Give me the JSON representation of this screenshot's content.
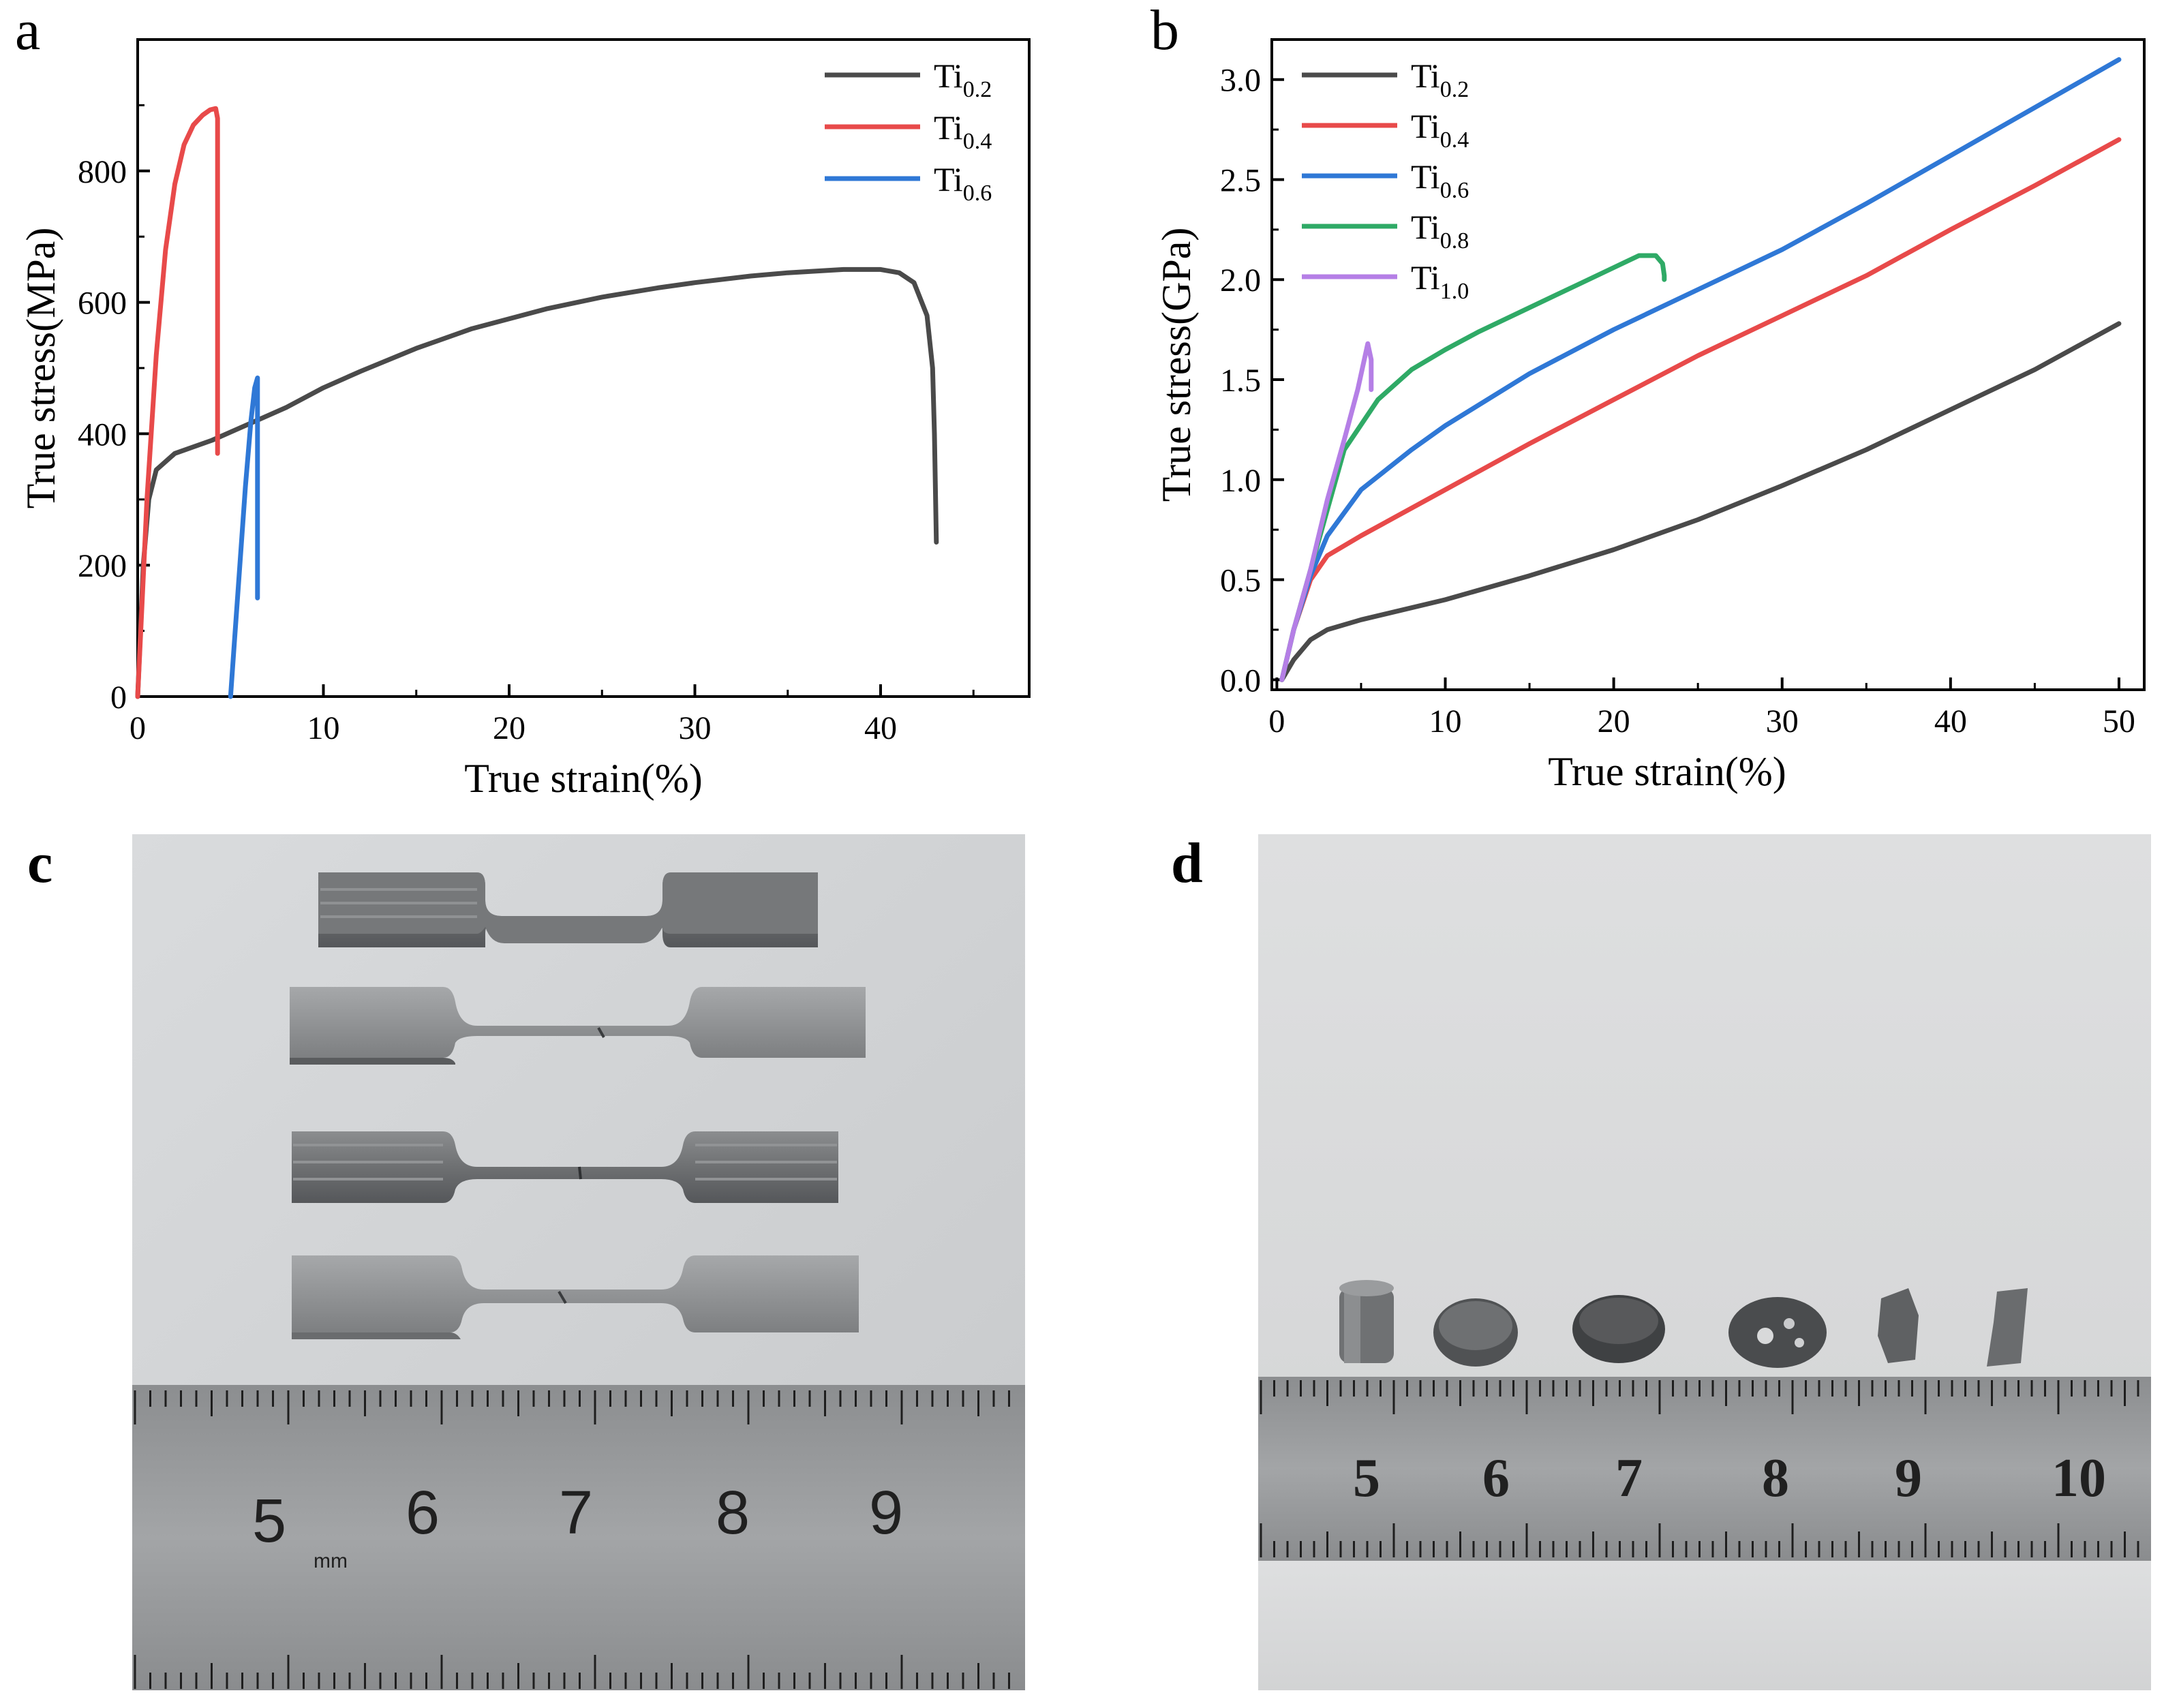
{
  "panels": {
    "a": "a",
    "b": "b",
    "c": "c",
    "d": "d"
  },
  "colors": {
    "Ti0.2": "#4a4a4a",
    "Ti0.4": "#e84a4a",
    "Ti0.6": "#2f78d6",
    "Ti0.8": "#2faa66",
    "Ti1.0": "#b57fe6"
  },
  "chart_data": [
    {
      "type": "line",
      "panel": "a",
      "xlabel": "True strain(%)",
      "ylabel": "True stress(MPa)",
      "xlim": [
        0,
        48
      ],
      "ylim": [
        0,
        1000
      ],
      "xticks": [
        0,
        10,
        20,
        30,
        40
      ],
      "yticks": [
        0,
        200,
        400,
        600,
        800
      ],
      "legend_position": "top-right",
      "series": [
        {
          "name": "Ti0.2",
          "base": "Ti",
          "sub": "0.2",
          "x": [
            0,
            0.3,
            0.6,
            1.0,
            2,
            4,
            6,
            8,
            10,
            12,
            15,
            18,
            20,
            22,
            25,
            28,
            30,
            33,
            35,
            38,
            40,
            41,
            41.8,
            42.5,
            42.8,
            42.9,
            43.0
          ],
          "y": [
            0,
            200,
            300,
            345,
            370,
            390,
            415,
            440,
            470,
            495,
            530,
            560,
            575,
            590,
            608,
            622,
            630,
            640,
            645,
            650,
            650,
            645,
            630,
            580,
            500,
            400,
            235
          ]
        },
        {
          "name": "Ti0.4",
          "base": "Ti",
          "sub": "0.4",
          "x": [
            0,
            0.5,
            1.0,
            1.5,
            2.0,
            2.5,
            3.0,
            3.5,
            3.9,
            4.2,
            4.3,
            4.3,
            4.3
          ],
          "y": [
            0,
            300,
            520,
            680,
            780,
            840,
            870,
            885,
            893,
            895,
            880,
            600,
            370
          ]
        },
        {
          "name": "Ti0.6",
          "base": "Ti",
          "sub": "0.6",
          "x": [
            5.0,
            5.2,
            5.5,
            5.8,
            6.1,
            6.3,
            6.45,
            6.45,
            6.45
          ],
          "y": [
            0,
            80,
            200,
            320,
            420,
            470,
            485,
            300,
            150
          ]
        }
      ]
    },
    {
      "type": "line",
      "panel": "b",
      "xlabel": "True strain(%)",
      "ylabel": "True stress(GPa)",
      "xlim": [
        -0.3,
        51.5
      ],
      "ylim": [
        -0.05,
        3.2
      ],
      "xticks": [
        0,
        10,
        20,
        30,
        40,
        50
      ],
      "yticks": [
        0.0,
        0.5,
        1.0,
        1.5,
        2.0,
        2.5,
        3.0
      ],
      "ytick_labels": [
        "0.0",
        "0.5",
        "1.0",
        "1.5",
        "2.0",
        "2.5",
        "3.0"
      ],
      "legend_position": "top-left",
      "series": [
        {
          "name": "Ti0.2",
          "base": "Ti",
          "sub": "0.2",
          "x": [
            0.3,
            1,
            2,
            3,
            5,
            10,
            15,
            20,
            25,
            30,
            35,
            40,
            45,
            50
          ],
          "y": [
            0,
            0.1,
            0.2,
            0.25,
            0.3,
            0.4,
            0.52,
            0.65,
            0.8,
            0.97,
            1.15,
            1.35,
            1.55,
            1.78
          ]
        },
        {
          "name": "Ti0.4",
          "base": "Ti",
          "sub": "0.4",
          "x": [
            0.3,
            1,
            2,
            3,
            5,
            10,
            15,
            20,
            25,
            30,
            35,
            40,
            45,
            50
          ],
          "y": [
            0,
            0.25,
            0.5,
            0.62,
            0.72,
            0.95,
            1.18,
            1.4,
            1.62,
            1.82,
            2.02,
            2.25,
            2.47,
            2.7
          ]
        },
        {
          "name": "Ti0.6",
          "base": "Ti",
          "sub": "0.6",
          "x": [
            0.3,
            1,
            2,
            3,
            5,
            8,
            10,
            15,
            20,
            25,
            30,
            35,
            40,
            45,
            50
          ],
          "y": [
            0,
            0.25,
            0.52,
            0.72,
            0.95,
            1.15,
            1.27,
            1.53,
            1.75,
            1.95,
            2.15,
            2.38,
            2.62,
            2.86,
            3.1
          ]
        },
        {
          "name": "Ti0.8",
          "base": "Ti",
          "sub": "0.8",
          "x": [
            0.3,
            1,
            2,
            3,
            4,
            6,
            8,
            10,
            12,
            15,
            18,
            20,
            21.5,
            22.5,
            22.9,
            23.0,
            23.0
          ],
          "y": [
            0,
            0.25,
            0.55,
            0.85,
            1.15,
            1.4,
            1.55,
            1.65,
            1.74,
            1.86,
            1.98,
            2.06,
            2.12,
            2.12,
            2.08,
            2.02,
            2.0
          ]
        },
        {
          "name": "Ti1.0",
          "base": "Ti",
          "sub": "1.0",
          "x": [
            0.3,
            1.0,
            2.0,
            3.0,
            4.0,
            4.8,
            5.4,
            5.6,
            5.6
          ],
          "y": [
            0,
            0.25,
            0.55,
            0.9,
            1.2,
            1.45,
            1.68,
            1.6,
            1.45
          ]
        }
      ]
    }
  ],
  "photos": {
    "c": {
      "ruler_numbers": [
        "5",
        "6",
        "7",
        "8",
        "9"
      ],
      "ruler_unit": "mm"
    },
    "d": {
      "ruler_numbers": [
        "5",
        "6",
        "7",
        "8",
        "9",
        "10"
      ]
    }
  }
}
